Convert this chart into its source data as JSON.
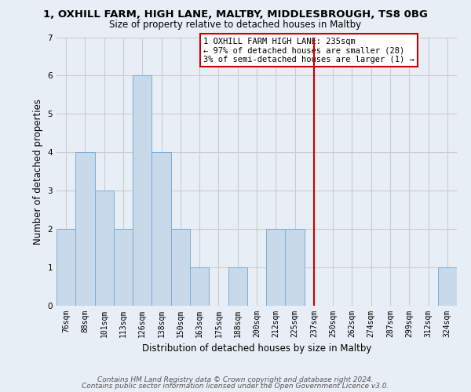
{
  "title": "1, OXHILL FARM, HIGH LANE, MALTBY, MIDDLESBROUGH, TS8 0BG",
  "subtitle": "Size of property relative to detached houses in Maltby",
  "xlabel": "Distribution of detached houses by size in Maltby",
  "ylabel": "Number of detached properties",
  "categories": [
    "76sqm",
    "88sqm",
    "101sqm",
    "113sqm",
    "126sqm",
    "138sqm",
    "150sqm",
    "163sqm",
    "175sqm",
    "188sqm",
    "200sqm",
    "212sqm",
    "225sqm",
    "237sqm",
    "250sqm",
    "262sqm",
    "274sqm",
    "287sqm",
    "299sqm",
    "312sqm",
    "324sqm"
  ],
  "values": [
    2,
    4,
    3,
    2,
    6,
    4,
    2,
    1,
    0,
    1,
    0,
    2,
    2,
    0,
    0,
    0,
    0,
    0,
    0,
    0,
    1
  ],
  "bar_color": "#c8d9ea",
  "bar_edge_color": "#7badd4",
  "bar_edge_width": 0.7,
  "vline_x_index": 13,
  "vline_color": "#cc0000",
  "annotation_text": "1 OXHILL FARM HIGH LANE: 235sqm\n← 97% of detached houses are smaller (28)\n3% of semi-detached houses are larger (1) →",
  "annotation_box_color": "#ffffff",
  "annotation_box_edge_color": "#cc0000",
  "ylim": [
    0,
    7
  ],
  "yticks": [
    0,
    1,
    2,
    3,
    4,
    5,
    6,
    7
  ],
  "grid_color": "#cccccc",
  "bg_color": "#e8eef5",
  "plot_bg_color": "#e8eef5",
  "footer_line1": "Contains HM Land Registry data © Crown copyright and database right 2024.",
  "footer_line2": "Contains public sector information licensed under the Open Government Licence v3.0.",
  "title_fontsize": 9.5,
  "subtitle_fontsize": 8.5,
  "axis_label_fontsize": 8.5,
  "tick_fontsize": 7,
  "footer_fontsize": 6.5,
  "annot_fontsize": 7.5
}
